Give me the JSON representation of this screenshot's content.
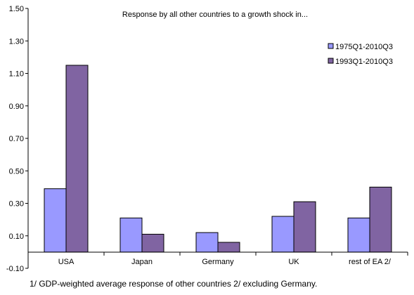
{
  "chart_data": {
    "type": "bar",
    "title": "Response by all other countries to a growth shock in...",
    "categories": [
      "USA",
      "Japan",
      "Germany",
      "UK",
      "rest of EA 2/"
    ],
    "series": [
      {
        "name": "1975Q1-2010Q3",
        "color": "#9999ff",
        "values": [
          0.39,
          0.21,
          0.12,
          0.22,
          0.21
        ]
      },
      {
        "name": "1993Q1-2010Q3",
        "color": "#8064a2",
        "values": [
          1.15,
          0.11,
          0.06,
          0.31,
          0.4
        ]
      }
    ],
    "yticks": [
      "1.50",
      "1.30",
      "1.10",
      "0.90",
      "0.70",
      "0.50",
      "0.30",
      "0.10",
      "-0.10"
    ],
    "ylim": [
      -0.1,
      1.5
    ],
    "xlabel": "",
    "ylabel": "",
    "grid": false,
    "legend": "top-right"
  },
  "footnote": "1/ GDP-weighted average response of other countries 2/ excluding Germany."
}
